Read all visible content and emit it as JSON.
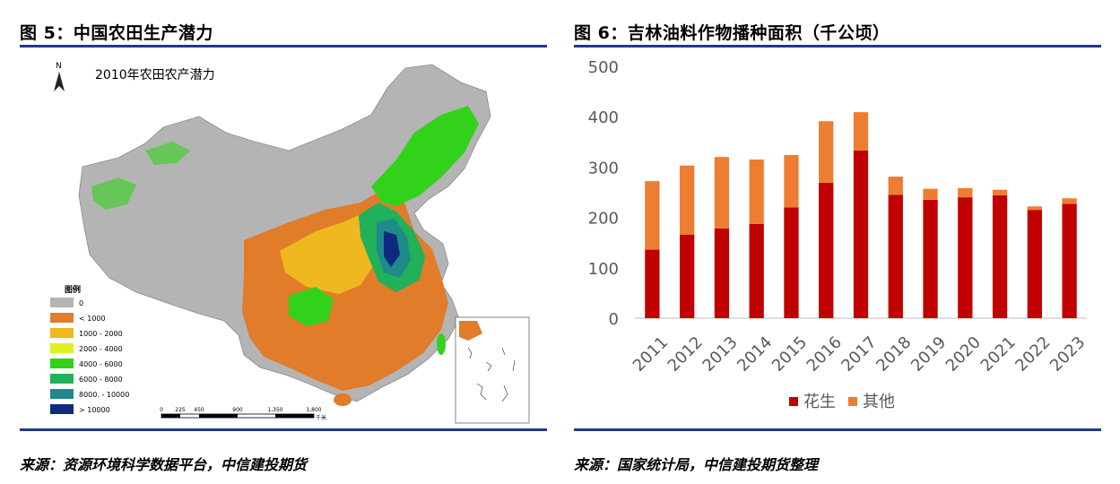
{
  "left": {
    "figure_title": "图 5：中国农田生产潜力",
    "source": "来源：资源环境科学数据平台，中信建投期货",
    "map": {
      "title": "2010年农田农产潜力",
      "north_label": "N",
      "legend_title": "图例",
      "legend": [
        {
          "label": "0",
          "color": "#b4b4b4"
        },
        {
          "label": "< 1000",
          "color": "#e07c2a"
        },
        {
          "label": "1000 - 2000",
          "color": "#f0b820"
        },
        {
          "label": "2000 - 4000",
          "color": "#dff020"
        },
        {
          "label": "4000 - 6000",
          "color": "#33d21a"
        },
        {
          "label": "6000 - 8000",
          "color": "#21b15a"
        },
        {
          "label": "8000. - 10000",
          "color": "#1e8a8a"
        },
        {
          "label": "> 10000",
          "color": "#0e2a7e"
        }
      ],
      "scale_labels": [
        "0",
        "225",
        "450",
        "900",
        "1,350",
        "1,800"
      ],
      "scale_unit": "千米"
    }
  },
  "right": {
    "figure_title": "图 6：吉林油料作物播种面积（千公顷）",
    "source": "来源：国家统计局，中信建投期货整理",
    "chart_data": {
      "type": "bar",
      "stacked": true,
      "categories": [
        "2011",
        "2012",
        "2013",
        "2014",
        "2015",
        "2016",
        "2017",
        "2018",
        "2019",
        "2020",
        "2021",
        "2022",
        "2023"
      ],
      "series": [
        {
          "name": "花生",
          "color": "#c00000",
          "values": [
            136,
            166,
            178,
            187,
            220,
            269,
            333,
            245,
            235,
            240,
            244,
            215,
            227
          ]
        },
        {
          "name": "其他",
          "color": "#ed7d31",
          "values": [
            136,
            137,
            142,
            128,
            104,
            122,
            76,
            36,
            22,
            18,
            11,
            7,
            11
          ]
        }
      ],
      "yticks": [
        0,
        100,
        200,
        300,
        400,
        500
      ],
      "ylim": [
        0,
        500
      ],
      "legend_position": "bottom",
      "grid": false
    }
  }
}
